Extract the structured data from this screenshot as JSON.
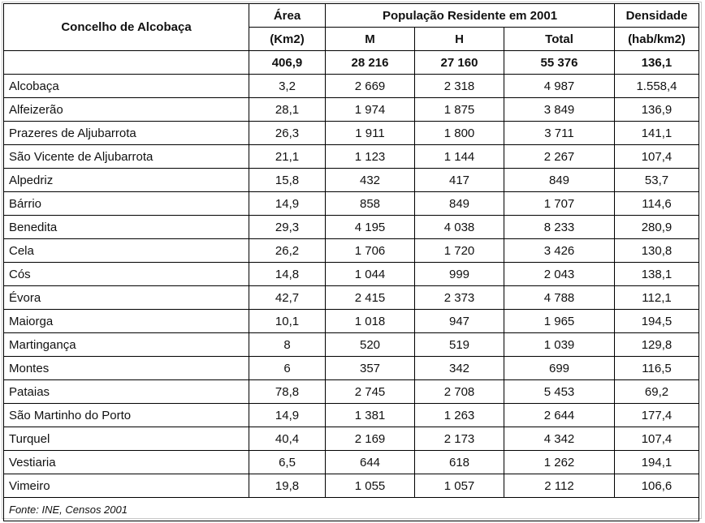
{
  "header": {
    "title": "Concelho de Alcobaça",
    "area_label": "Área",
    "area_unit": "(Km2)",
    "population_group": "População Residente em 2001",
    "col_m": "M",
    "col_h": "H",
    "col_total": "Total",
    "density_label": "Densidade",
    "density_unit": "(hab/km2)"
  },
  "totals": {
    "area": "406,9",
    "m": "28 216",
    "h": "27 160",
    "total": "55 376",
    "density": "136,1"
  },
  "rows": [
    {
      "name": "Alcobaça",
      "area": "3,2",
      "m": "2 669",
      "h": "2 318",
      "total": "4 987",
      "density": "1.558,4"
    },
    {
      "name": "Alfeizerão",
      "area": "28,1",
      "m": "1 974",
      "h": "1 875",
      "total": "3 849",
      "density": "136,9"
    },
    {
      "name": "Prazeres de Aljubarrota",
      "area": "26,3",
      "m": "1 911",
      "h": "1 800",
      "total": "3 711",
      "density": "141,1"
    },
    {
      "name": "São Vicente de Aljubarrota",
      "area": "21,1",
      "m": "1 123",
      "h": "1 144",
      "total": "2 267",
      "density": "107,4"
    },
    {
      "name": "Alpedriz",
      "area": "15,8",
      "m": "432",
      "h": "417",
      "total": "849",
      "density": "53,7"
    },
    {
      "name": "Bárrio",
      "area": "14,9",
      "m": "858",
      "h": "849",
      "total": "1 707",
      "density": "114,6"
    },
    {
      "name": "Benedita",
      "area": "29,3",
      "m": "4 195",
      "h": "4 038",
      "total": "8 233",
      "density": "280,9"
    },
    {
      "name": "Cela",
      "area": "26,2",
      "m": "1 706",
      "h": "1 720",
      "total": "3 426",
      "density": "130,8"
    },
    {
      "name": "Cós",
      "area": "14,8",
      "m": "1 044",
      "h": "999",
      "total": "2 043",
      "density": "138,1"
    },
    {
      "name": "Évora",
      "area": "42,7",
      "m": "2 415",
      "h": "2 373",
      "total": "4 788",
      "density": "112,1"
    },
    {
      "name": "Maiorga",
      "area": "10,1",
      "m": "1 018",
      "h": "947",
      "total": "1 965",
      "density": "194,5"
    },
    {
      "name": "Martingança",
      "area": "8",
      "m": "520",
      "h": "519",
      "total": "1 039",
      "density": "129,8"
    },
    {
      "name": "Montes",
      "area": "6",
      "m": "357",
      "h": "342",
      "total": "699",
      "density": "116,5"
    },
    {
      "name": "Pataias",
      "area": "78,8",
      "m": "2 745",
      "h": "2 708",
      "total": "5 453",
      "density": "69,2"
    },
    {
      "name": "São Martinho do Porto",
      "area": "14,9",
      "m": "1 381",
      "h": "1 263",
      "total": "2 644",
      "density": "177,4"
    },
    {
      "name": "Turquel",
      "area": "40,4",
      "m": "2 169",
      "h": "2 173",
      "total": "4 342",
      "density": "107,4"
    },
    {
      "name": "Vestiaria",
      "area": "6,5",
      "m": "644",
      "h": "618",
      "total": "1 262",
      "density": "194,1"
    },
    {
      "name": "Vimeiro",
      "area": "19,8",
      "m": "1 055",
      "h": "1 057",
      "total": "2 112",
      "density": "106,6"
    }
  ],
  "source": "Fonte: INE, Censos 2001"
}
